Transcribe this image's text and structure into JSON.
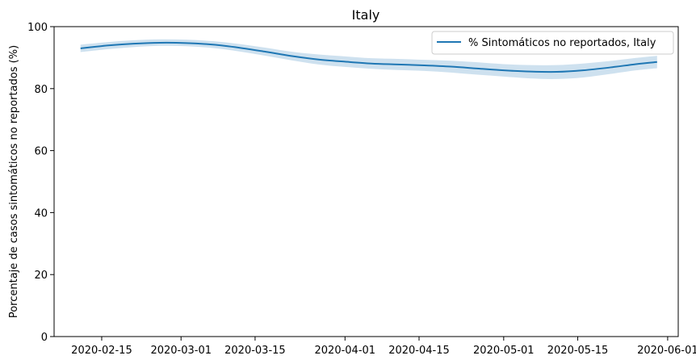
{
  "chart_data": {
    "type": "line",
    "title": "Italy",
    "xlabel": "",
    "ylabel": "Porcentaje de casos sintomáticos no reportados (%)",
    "xlim": [
      "2020-02-06",
      "2020-06-03"
    ],
    "ylim": [
      0,
      100
    ],
    "x_ticks": [
      "2020-02-15",
      "2020-03-01",
      "2020-03-15",
      "2020-04-01",
      "2020-04-15",
      "2020-05-01",
      "2020-05-15",
      "2020-06-01"
    ],
    "y_ticks": [
      0,
      20,
      40,
      60,
      80,
      100
    ],
    "legend_position": "top-right",
    "grid": false,
    "series": [
      {
        "name": "% Sintomáticos no reportados, Italy",
        "color": "#1f77b4",
        "band_color": "#1f77b4",
        "x": [
          "2020-02-11",
          "2020-02-16",
          "2020-02-21",
          "2020-02-26",
          "2020-03-02",
          "2020-03-07",
          "2020-03-12",
          "2020-03-17",
          "2020-03-22",
          "2020-03-27",
          "2020-04-01",
          "2020-04-06",
          "2020-04-11",
          "2020-04-16",
          "2020-04-21",
          "2020-04-26",
          "2020-05-01",
          "2020-05-06",
          "2020-05-11",
          "2020-05-16",
          "2020-05-21",
          "2020-05-26",
          "2020-05-30"
        ],
        "y": [
          93.0,
          93.9,
          94.5,
          94.8,
          94.7,
          94.2,
          93.2,
          91.9,
          90.5,
          89.4,
          88.7,
          88.1,
          87.8,
          87.5,
          87.1,
          86.5,
          85.9,
          85.5,
          85.4,
          85.9,
          86.8,
          87.9,
          88.6
        ],
        "lower": [
          91.8,
          92.7,
          93.4,
          93.8,
          93.7,
          93.1,
          92.0,
          90.6,
          89.1,
          87.8,
          87.0,
          86.4,
          86.0,
          85.7,
          85.2,
          84.5,
          83.9,
          83.3,
          83.1,
          83.6,
          84.7,
          85.9,
          86.6
        ],
        "upper": [
          94.2,
          95.0,
          95.6,
          95.9,
          95.8,
          95.3,
          94.4,
          93.2,
          91.9,
          91.0,
          90.4,
          89.8,
          89.6,
          89.3,
          89.0,
          88.5,
          87.9,
          87.6,
          87.6,
          88.1,
          88.9,
          89.9,
          90.6
        ]
      }
    ]
  }
}
